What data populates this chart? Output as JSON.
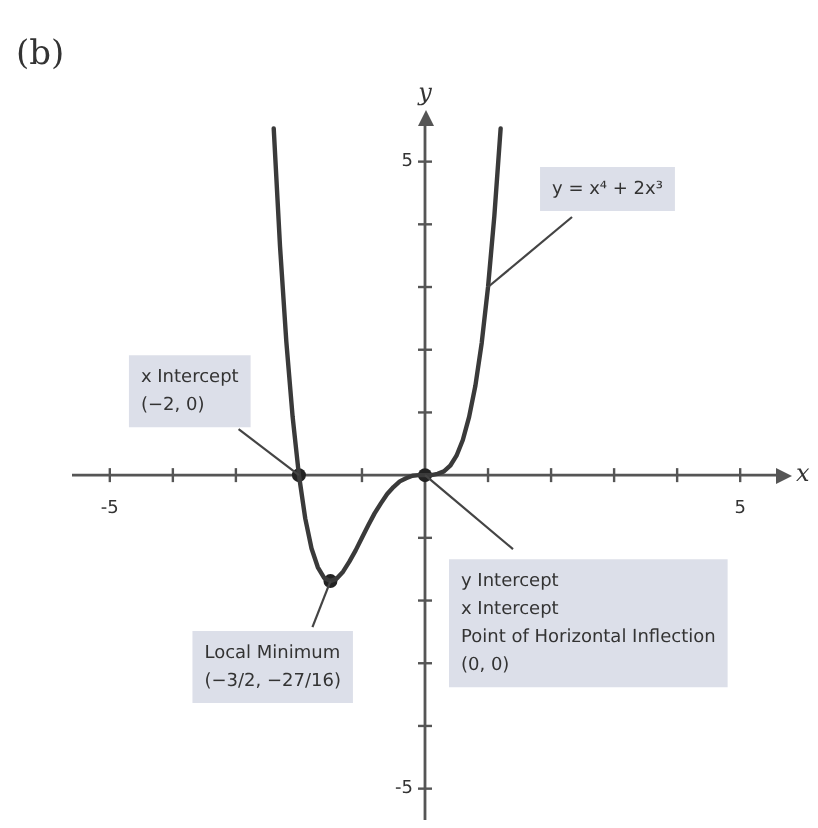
{
  "chart_data": {
    "type": "line",
    "title": "(b)",
    "xlabel": "x",
    "ylabel": "y",
    "xlim": [
      -5.6,
      5.6
    ],
    "ylim": [
      -5.5,
      5.6
    ],
    "xticks": [
      -5,
      {
        "value": -4,
        "label": null
      },
      {
        "value": -3,
        "label": null
      },
      {
        "value": -2,
        "label": null
      },
      {
        "value": -1,
        "label": null
      },
      {
        "value": 1,
        "label": null
      },
      {
        "value": 2,
        "label": null
      },
      {
        "value": 3,
        "label": null
      },
      {
        "value": 4,
        "label": null
      },
      5
    ],
    "yticks": [
      -5,
      {
        "value": -4,
        "label": null
      },
      {
        "value": -3,
        "label": null
      },
      {
        "value": -2,
        "label": null
      },
      {
        "value": -1,
        "label": null
      },
      {
        "value": 1,
        "label": null
      },
      {
        "value": 2,
        "label": null
      },
      {
        "value": 3,
        "label": null
      },
      {
        "value": 4,
        "label": null
      },
      5
    ],
    "marker": "none",
    "series": [
      {
        "type": "line",
        "color": "#3a3a3a",
        "x": [
          -2.4,
          -2.3,
          -2.2,
          -2.1,
          -2,
          -1.9,
          -1.8,
          -1.7,
          -1.6,
          -1.5,
          -1.4,
          -1.3,
          -1.2,
          -1.1,
          -1,
          -0.9,
          -0.8,
          -0.7,
          -0.6,
          -0.5,
          -0.4,
          -0.3,
          -0.2,
          -0.1,
          0,
          0.1,
          0.2,
          0.3,
          0.4,
          0.5,
          0.6,
          0.7,
          0.8,
          0.9,
          1,
          1.1,
          1.2
        ],
        "values": [
          5.53,
          3.65,
          2.13,
          0.93,
          0,
          -0.69,
          -1.17,
          -1.47,
          -1.64,
          -1.69,
          -1.65,
          -1.54,
          -1.38,
          -1.2,
          -1,
          -0.8,
          -0.61,
          -0.45,
          -0.3,
          -0.19,
          -0.1,
          -0.05,
          -0.01,
          0,
          0,
          0,
          0.02,
          0.06,
          0.15,
          0.31,
          0.56,
          0.93,
          1.43,
          2.11,
          3,
          4.13,
          5.53
        ]
      },
      {
        "type": "scatter",
        "marker": "circle",
        "color": "#222222",
        "x": [
          -2,
          -1.5,
          0
        ],
        "values": [
          0,
          -1.69,
          0
        ]
      }
    ],
    "annotations": [
      {
        "text": "y = x⁴ + 2x³",
        "x": 1,
        "y": 3
      },
      {
        "text": "x Intercept\n(−2, 0)",
        "x": -2,
        "y": 0
      },
      {
        "text": "y Intercept\nx Intercept\nPoint of Horizontal Inflection\n(0, 0)",
        "x": 0,
        "y": 0
      },
      {
        "text": "Local Minimum\n(−3/2, −27/16)",
        "x": -1.5,
        "y": -1.69
      }
    ]
  }
}
